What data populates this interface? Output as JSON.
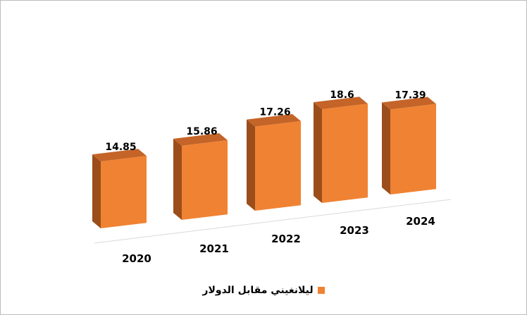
{
  "chart_data": {
    "type": "bar",
    "categories": [
      "2020",
      "2021",
      "2022",
      "2023",
      "2024"
    ],
    "series": [
      {
        "name": "ليلانغيني مقابل الدولار",
        "values": [
          14.85,
          15.86,
          17.26,
          18.6,
          17.39
        ],
        "data_labels": [
          "14.85",
          "15.86",
          "17.26",
          "18.6",
          "17.39"
        ]
      }
    ],
    "style": "3d-columns",
    "gridlines": false,
    "legend_position": "bottom",
    "colors": {
      "front": "#F08233",
      "side": "#9B4E1B",
      "top": "#C46428",
      "floor_line": "#D9D9D9"
    }
  }
}
